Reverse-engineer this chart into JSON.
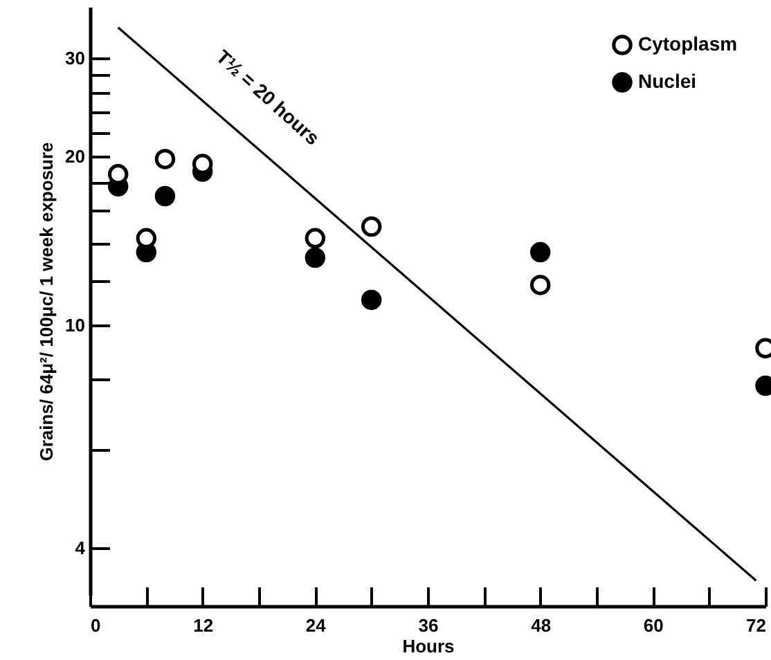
{
  "chart_data": {
    "type": "scatter",
    "xlabel": "Hours",
    "ylabel": "Grains/ 64μ²/ 100μc/ 1 week exposure",
    "x": [
      3,
      6,
      8,
      12,
      24,
      30,
      48,
      72
    ],
    "series": [
      {
        "name": "Cytoplasm",
        "color": "#ffffff",
        "values": [
          18.6,
          14.3,
          19.8,
          19.4,
          14.3,
          15.0,
          11.8,
          9.1
        ]
      },
      {
        "name": "Nuclei",
        "color": "#000000",
        "values": [
          17.7,
          13.5,
          17.0,
          18.8,
          13.2,
          11.1,
          13.5,
          7.8
        ]
      },
      {
        "type": "line",
        "color": "#000000",
        "marker": "none",
        "x": [
          3,
          71
        ],
        "values": [
          34,
          3.5
        ]
      }
    ],
    "annotations": [
      "T½ = 20 hours"
    ],
    "xlim": [
      0,
      72
    ],
    "xticks": [
      0,
      {
        "value": 6,
        "label": null
      },
      12,
      {
        "value": 18,
        "label": null
      },
      24,
      {
        "value": 30,
        "label": null
      },
      36,
      {
        "value": 42,
        "label": null
      },
      48,
      {
        "value": 54,
        "label": null
      },
      60,
      {
        "value": 66,
        "label": null
      },
      72
    ],
    "ylim": [
      3.3,
      37
    ],
    "yticks": [
      4,
      {
        "value": 6,
        "label": null
      },
      {
        "value": 8,
        "label": null
      },
      10,
      {
        "value": 12,
        "label": null
      },
      {
        "value": 14,
        "label": null
      },
      {
        "value": 16,
        "label": null
      },
      {
        "value": 18,
        "label": null
      },
      20,
      {
        "value": 22,
        "label": null
      },
      {
        "value": 24,
        "label": null
      },
      {
        "value": 26,
        "label": null
      },
      {
        "value": 28,
        "label": null
      },
      30
    ],
    "log": true,
    "grid": false,
    "legend": "top right",
    "marker": "circle"
  }
}
